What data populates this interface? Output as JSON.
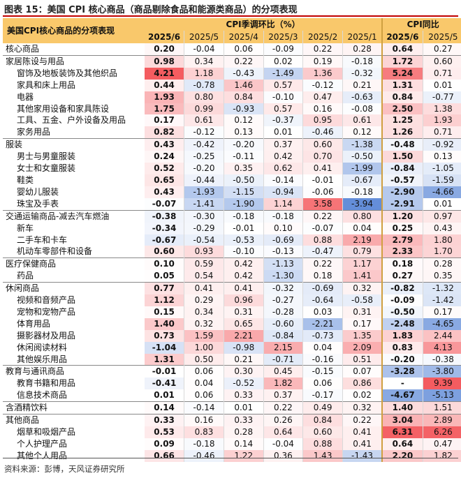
{
  "title": "图表 15：美国 CPI 核心商品（商品剔除食品和能源类商品）的分项表现",
  "source": "资料来源：彭博，天风证券研究所",
  "table": {
    "corner_label": "美国CPI核心商品的分项表现",
    "group_mom": "CPI季调环比（%）",
    "group_yoy": "CPI同比",
    "mom_columns": [
      "2025/6",
      "2025/5",
      "2025/4",
      "2025/3",
      "2025/2",
      "2025/1"
    ],
    "yoy_columns": [
      "2025/6",
      "2025/5"
    ]
  },
  "chart_data": {
    "type": "table",
    "title": "美国CPI核心商品的分项表现",
    "columns": [
      "2025/6",
      "2025/5",
      "2025/4",
      "2025/3",
      "2025/2",
      "2025/1",
      "2025/6",
      "2025/5"
    ],
    "rows": [
      {
        "name": "核心商品",
        "level": 0,
        "mom": [
          "0.20",
          "-0.04",
          "0.06",
          "-0.09",
          "0.22",
          "0.28"
        ],
        "yoy": [
          "0.64",
          "0.27"
        ]
      },
      {
        "name": "家居陈设与用品",
        "level": 0,
        "mom": [
          "0.98",
          "0.34",
          "0.22",
          "0.02",
          "0.19",
          "-0.18"
        ],
        "yoy": [
          "1.72",
          "0.60"
        ]
      },
      {
        "name": "窗饰及地板装饰及其他织品",
        "level": 1,
        "mom": [
          "4.21",
          "1.18",
          "-0.43",
          "-1.49",
          "1.36",
          "-0.32"
        ],
        "yoy": [
          "5.24",
          "0.71"
        ]
      },
      {
        "name": "家具和床上用品",
        "level": 1,
        "mom": [
          "0.44",
          "-0.78",
          "1.46",
          "0.57",
          "-0.12",
          "0.21"
        ],
        "yoy": [
          "1.31",
          "0.01"
        ]
      },
      {
        "name": "电器",
        "level": 1,
        "mom": [
          "1.93",
          "0.80",
          "0.84",
          "-0.10",
          "0.47",
          "-0.63"
        ],
        "yoy": [
          "0.84",
          "-0.77"
        ]
      },
      {
        "name": "其他家用设备和家具陈设",
        "level": 1,
        "mom": [
          "1.75",
          "0.99",
          "-0.93",
          "0.57",
          "0.16",
          "-0.08"
        ],
        "yoy": [
          "2.50",
          "1.38"
        ]
      },
      {
        "name": "工具、五金、户外设备及用品",
        "level": 1,
        "mom": [
          "0.17",
          "0.61",
          "0.12",
          "-0.37",
          "0.95",
          "0.61"
        ],
        "yoy": [
          "1.25",
          "1.93"
        ]
      },
      {
        "name": "家务用品",
        "level": 1,
        "mom": [
          "0.82",
          "-0.12",
          "0.13",
          "0.01",
          "-0.46",
          "0.12"
        ],
        "yoy": [
          "1.26",
          "0.71"
        ]
      },
      {
        "name": "服装",
        "level": 0,
        "mom": [
          "0.43",
          "-0.42",
          "-0.20",
          "0.37",
          "0.60",
          "-1.38"
        ],
        "yoy": [
          "-0.48",
          "-0.92"
        ]
      },
      {
        "name": "男士与男童服装",
        "level": 1,
        "mom": [
          "0.24",
          "-0.25",
          "-0.11",
          "0.42",
          "0.70",
          "-0.50"
        ],
        "yoy": [
          "1.50",
          "0.13"
        ]
      },
      {
        "name": "女士和女童服装",
        "level": 1,
        "mom": [
          "0.52",
          "-0.20",
          "0.35",
          "0.62",
          "0.41",
          "-1.99"
        ],
        "yoy": [
          "-0.84",
          "-1.05"
        ]
      },
      {
        "name": "鞋类",
        "level": 1,
        "mom": [
          "0.65",
          "-0.44",
          "-0.50",
          "-0.14",
          "-0.01",
          "-0.67"
        ],
        "yoy": [
          "-0.57",
          "-1.59"
        ]
      },
      {
        "name": "婴幼儿服装",
        "level": 1,
        "mom": [
          "0.43",
          "-1.93",
          "-1.15",
          "-0.94",
          "-0.06",
          "-0.18"
        ],
        "yoy": [
          "-2.90",
          "-4.66"
        ]
      },
      {
        "name": "珠宝及手表",
        "level": 1,
        "mom": [
          "-0.07",
          "-1.41",
          "-1.90",
          "1.14",
          "3.58",
          "-3.94"
        ],
        "yoy": [
          "-2.91",
          "0.01"
        ]
      },
      {
        "name": "交通运输商品-减去汽车燃油",
        "level": 0,
        "mom": [
          "-0.38",
          "-0.30",
          "-0.18",
          "-0.18",
          "0.22",
          "0.80"
        ],
        "yoy": [
          "1.20",
          "0.97"
        ]
      },
      {
        "name": "新车",
        "level": 1,
        "mom": [
          "-0.34",
          "-0.29",
          "-0.01",
          "0.10",
          "-0.07",
          "0.04"
        ],
        "yoy": [
          "0.25",
          "0.43"
        ]
      },
      {
        "name": "二手车和卡车",
        "level": 1,
        "mom": [
          "-0.67",
          "-0.54",
          "-0.53",
          "-0.69",
          "0.88",
          "2.19"
        ],
        "yoy": [
          "2.79",
          "1.80"
        ]
      },
      {
        "name": "机动车零部件和设备",
        "level": 1,
        "mom": [
          "0.60",
          "0.93",
          "-0.10",
          "-0.13",
          "-0.47",
          "0.79"
        ],
        "yoy": [
          "2.33",
          "1.70"
        ]
      },
      {
        "name": "医疗保健商品",
        "level": 0,
        "mom": [
          "0.10",
          "0.59",
          "0.42",
          "-1.13",
          "0.22",
          "1.17"
        ],
        "yoy": [
          "0.18",
          "0.28"
        ]
      },
      {
        "name": "药品",
        "level": 1,
        "mom": [
          "0.05",
          "0.54",
          "0.42",
          "-1.30",
          "0.18",
          "1.41"
        ],
        "yoy": [
          "0.27",
          "0.35"
        ]
      },
      {
        "name": "休闲商品",
        "level": 0,
        "mom": [
          "0.77",
          "0.41",
          "0.41",
          "-0.32",
          "-0.69",
          "0.32"
        ],
        "yoy": [
          "-0.82",
          "-1.32"
        ]
      },
      {
        "name": "视频和音频产品",
        "level": 1,
        "mom": [
          "1.12",
          "0.29",
          "0.96",
          "-0.27",
          "-0.64",
          "-0.58"
        ],
        "yoy": [
          "-0.09",
          "-1.42"
        ]
      },
      {
        "name": "宠物和宠物产品",
        "level": 1,
        "mom": [
          "0.15",
          "0.34",
          "0.31",
          "-0.28",
          "0.03",
          "0.31"
        ],
        "yoy": [
          "-0.50",
          "0.17"
        ]
      },
      {
        "name": "体育用品",
        "level": 1,
        "mom": [
          "1.40",
          "0.32",
          "0.65",
          "-0.60",
          "-2.21",
          "0.17"
        ],
        "yoy": [
          "-2.48",
          "-4.65"
        ]
      },
      {
        "name": "摄影器材及用品",
        "level": 1,
        "mom": [
          "0.73",
          "1.59",
          "2.21",
          "-0.84",
          "-0.73",
          "1.35"
        ],
        "yoy": [
          "1.83",
          "2.44"
        ]
      },
      {
        "name": "休闲阅读材料",
        "level": 1,
        "mom": [
          "-1.04",
          "1.00",
          "-0.98",
          "2.15",
          "0.04",
          "2.09"
        ],
        "yoy": [
          "0.83",
          "4.13"
        ]
      },
      {
        "name": "其他娱乐用品",
        "level": 1,
        "mom": [
          "1.31",
          "0.50",
          "0.21",
          "-0.71",
          "-0.16",
          "0.51"
        ],
        "yoy": [
          "-0.20",
          "-0.38"
        ]
      },
      {
        "name": "教育与通讯商品",
        "level": 0,
        "mom": [
          "-0.01",
          "0.06",
          "0.30",
          "0.45",
          "-0.15",
          "0.07"
        ],
        "yoy": [
          "-3.28",
          "-3.80"
        ]
      },
      {
        "name": "教育书籍和用品",
        "level": 1,
        "mom": [
          "-0.41",
          "0.04",
          "-0.52",
          "1.82",
          "0.06",
          "0.86"
        ],
        "yoy": [
          "-",
          "9.39"
        ]
      },
      {
        "name": "信息技术商品",
        "level": 1,
        "mom": [
          "0.01",
          "0.06",
          "0.33",
          "0.37",
          "-0.17",
          "0.02"
        ],
        "yoy": [
          "-4.67",
          "-5.13"
        ]
      },
      {
        "name": "含酒精饮料",
        "level": 0,
        "mom": [
          "0.14",
          "-0.14",
          "0.01",
          "0.22",
          "0.49",
          "0.32"
        ],
        "yoy": [
          "1.40",
          "1.51"
        ]
      },
      {
        "name": "其他商品",
        "level": 0,
        "mom": [
          "0.33",
          "0.16",
          "0.33",
          "0.26",
          "0.84",
          "0.22"
        ],
        "yoy": [
          "3.04",
          "2.89"
        ]
      },
      {
        "name": "烟草和吸烟产品",
        "level": 1,
        "mom": [
          "0.53",
          "0.83",
          "0.28",
          "0.64",
          "0.60",
          "0.41"
        ],
        "yoy": [
          "6.31",
          "6.26"
        ]
      },
      {
        "name": "个人护理产品",
        "level": 1,
        "mom": [
          "0.09",
          "-0.18",
          "0.14",
          "-0.04",
          "0.88",
          "0.41"
        ],
        "yoy": [
          "0.64",
          "0.47"
        ]
      },
      {
        "name": "其他个人用品",
        "level": 1,
        "mom": [
          "0.66",
          "-0.46",
          "1.22",
          "0.36",
          "1.43",
          "-1.43"
        ],
        "yoy": [
          "2.20",
          "1.82"
        ]
      }
    ]
  },
  "colors": {
    "header_bg": "#f9c86b",
    "positive": "#e8353a",
    "negative": "#3a6fd0",
    "rule": "#c00000"
  }
}
